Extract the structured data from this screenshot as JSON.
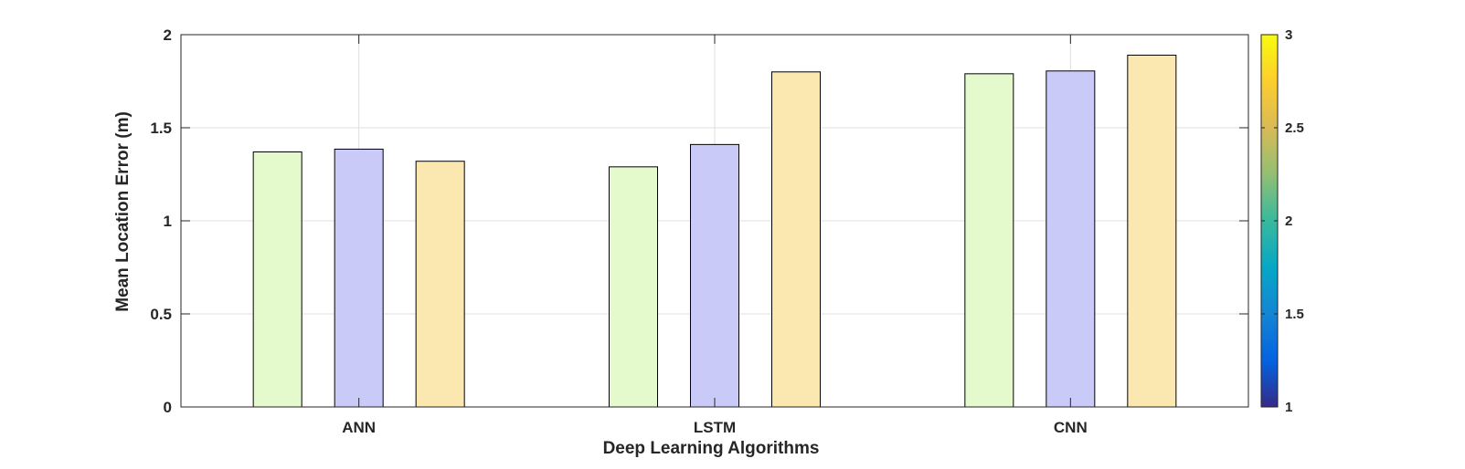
{
  "chart_data": {
    "type": "bar",
    "xlabel": "Deep Learning Algorithms",
    "ylabel": "Mean Location Error (m)",
    "categories": [
      "ANN",
      "LSTM",
      "CNN"
    ],
    "ylim": [
      0,
      2
    ],
    "yticks": [
      0,
      0.5,
      1,
      1.5,
      2
    ],
    "ytick_labels": [
      "0",
      "0.5",
      "1",
      "1.5",
      "2"
    ],
    "grid": true,
    "series": [
      {
        "values": [
          1.37,
          1.29,
          1.79
        ],
        "color": "#e4facc"
      },
      {
        "values": [
          1.385,
          1.41,
          1.805
        ],
        "color": "#cacaf8"
      },
      {
        "values": [
          1.32,
          1.8,
          1.89
        ],
        "color": "#fae8b0"
      }
    ],
    "colorbar": {
      "range": [
        1,
        3
      ],
      "ticks": [
        1,
        1.5,
        2,
        2.5,
        3
      ],
      "tick_labels": [
        "1",
        "1.5",
        "2",
        "2.5",
        "3"
      ],
      "colormap": "parula"
    }
  }
}
